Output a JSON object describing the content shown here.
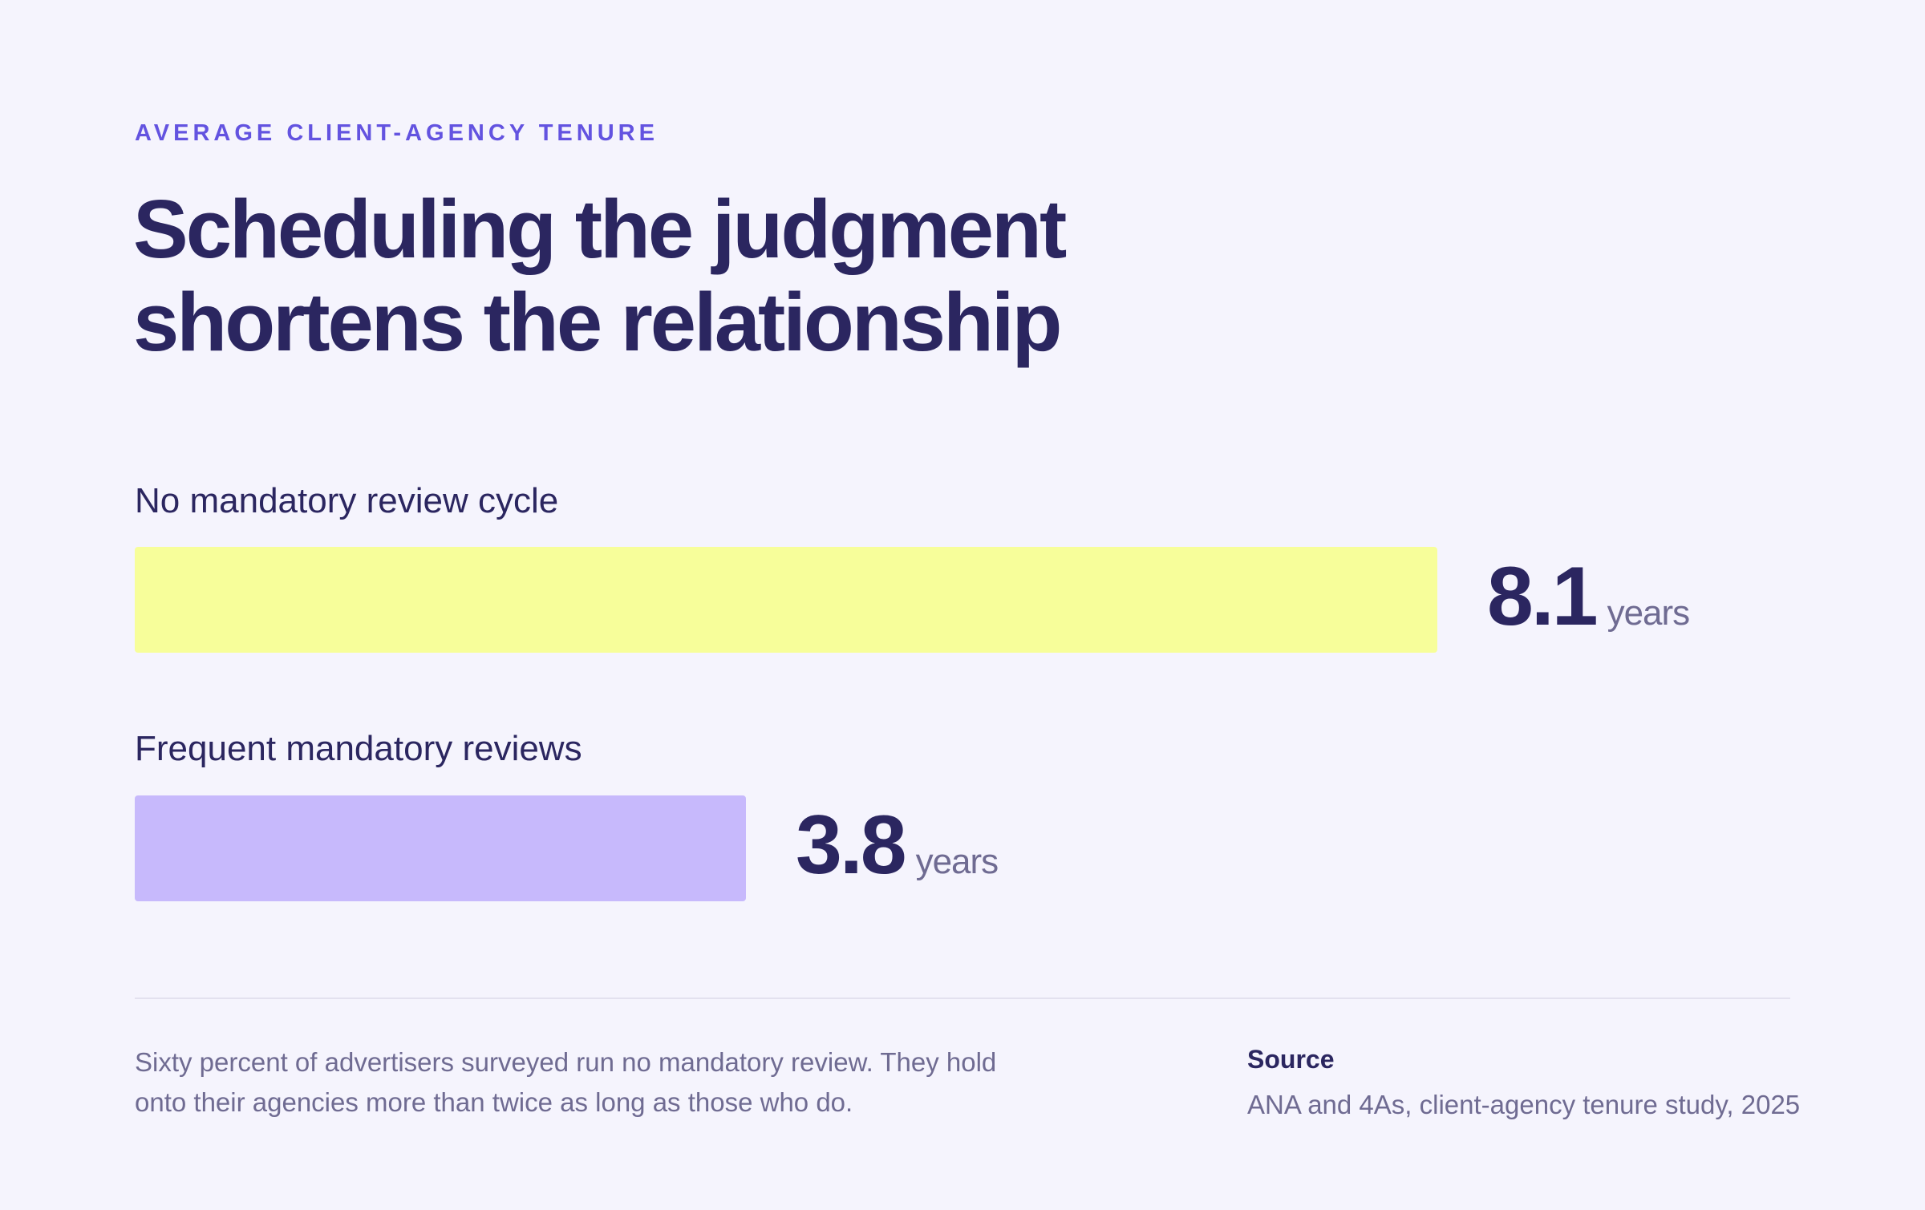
{
  "eyebrow": "AVERAGE CLIENT-AGENCY TENURE",
  "title_lines": [
    "Scheduling the judgment",
    "shortens the relationship"
  ],
  "chart_data": {
    "type": "bar",
    "orientation": "horizontal",
    "title": "Scheduling the judgment shortens the relationship",
    "categories": [
      "No mandatory review cycle",
      "Frequent mandatory reviews"
    ],
    "values": [
      8.1,
      3.8
    ],
    "value_labels": [
      "8.1",
      "3.8"
    ],
    "unit": "years",
    "colors": [
      "#f7fe9a",
      "#c7b9fc"
    ],
    "xlim": [
      0,
      8.1
    ],
    "grid": false,
    "legend": "none"
  },
  "note_lines": [
    "Sixty percent of advertisers surveyed run no mandatory review. They hold",
    "onto their agencies more than twice as long as those who do."
  ],
  "source": {
    "heading": "Source",
    "text": "ANA and 4As, client-agency tenure study, 2025"
  }
}
